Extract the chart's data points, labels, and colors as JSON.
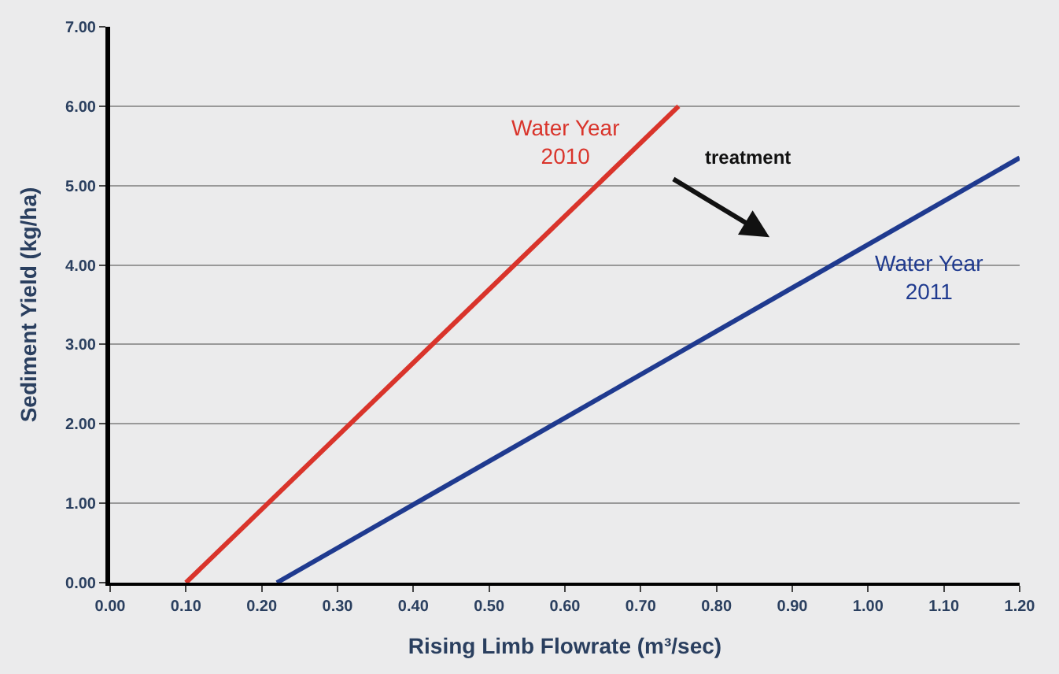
{
  "chart_data": {
    "type": "line",
    "xlabel": "Rising Limb Flowrate (m³/sec)",
    "ylabel": "Sediment Yield (kg/ha)",
    "series": [
      {
        "name": "Water Year 2010",
        "color": "#d9342b",
        "x": [
          0.1,
          0.75
        ],
        "values": [
          0.0,
          6.0
        ]
      },
      {
        "name": "Water Year 2011",
        "color": "#1f3a8f",
        "x": [
          0.22,
          1.2
        ],
        "values": [
          0.0,
          5.35
        ]
      }
    ],
    "annotations": [
      "treatment"
    ],
    "xlim": [
      0,
      1.2
    ],
    "xticks": [
      {
        "value": 0,
        "label": "0.00"
      },
      {
        "value": 0.1,
        "label": "0.10"
      },
      {
        "value": 0.2,
        "label": "0.20"
      },
      {
        "value": 0.3,
        "label": "0.30"
      },
      {
        "value": 0.4,
        "label": "0.40"
      },
      {
        "value": 0.5,
        "label": "0.50"
      },
      {
        "value": 0.6,
        "label": "0.60"
      },
      {
        "value": 0.7,
        "label": "0.70"
      },
      {
        "value": 0.8,
        "label": "0.80"
      },
      {
        "value": 0.9,
        "label": "0.90"
      },
      {
        "value": 1.0,
        "label": "1.00"
      },
      {
        "value": 1.1,
        "label": "1.10"
      },
      {
        "value": 1.2,
        "label": "1.20"
      }
    ],
    "ylim": [
      0,
      7
    ],
    "yticks": [
      {
        "value": 0,
        "label": "0.00"
      },
      {
        "value": 1,
        "label": "1.00"
      },
      {
        "value": 2,
        "label": "2.00"
      },
      {
        "value": 3,
        "label": "3.00"
      },
      {
        "value": 4,
        "label": "4.00"
      },
      {
        "value": 5,
        "label": "5.00"
      },
      {
        "value": 6,
        "label": "6.00"
      },
      {
        "value": 7,
        "label": "7.00"
      }
    ],
    "grid": "y",
    "legend": false,
    "line_style": "solid",
    "marker": "none"
  }
}
